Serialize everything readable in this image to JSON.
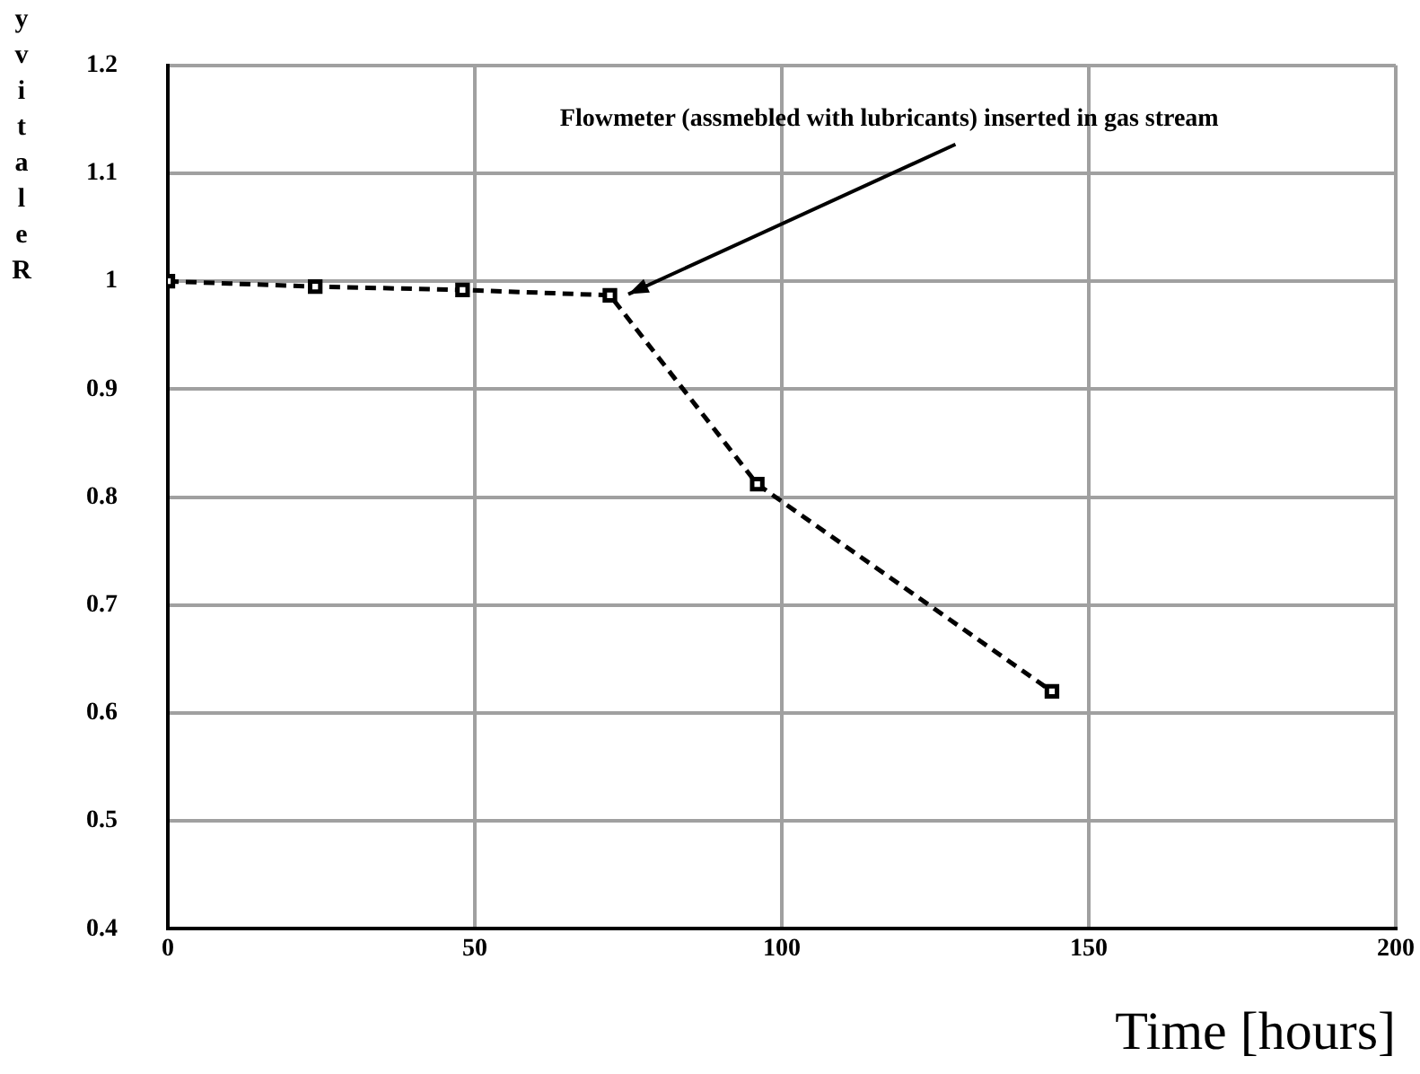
{
  "chart_data": {
    "type": "line",
    "xlabel": "Time [hours]",
    "ylabel": "yvitaleR",
    "x": [
      0,
      24,
      48,
      72,
      96,
      144
    ],
    "series": [
      {
        "color": "#000000",
        "values": [
          1.0,
          0.995,
          0.992,
          0.987,
          0.812,
          0.62
        ]
      }
    ],
    "xlim": [
      0,
      200
    ],
    "xticks": [
      0,
      50,
      100,
      150,
      200
    ],
    "ylim": [
      0.4,
      1.2
    ],
    "yticks": [
      0.4,
      0.5,
      0.6,
      0.7,
      0.8,
      0.9,
      1,
      1.1,
      1.2
    ],
    "grid": true,
    "legend": false,
    "marker": "square",
    "line_style": "dashed",
    "annotations": [
      "Flowmeter (assmebled with lubricants) inserted in gas stream"
    ]
  }
}
